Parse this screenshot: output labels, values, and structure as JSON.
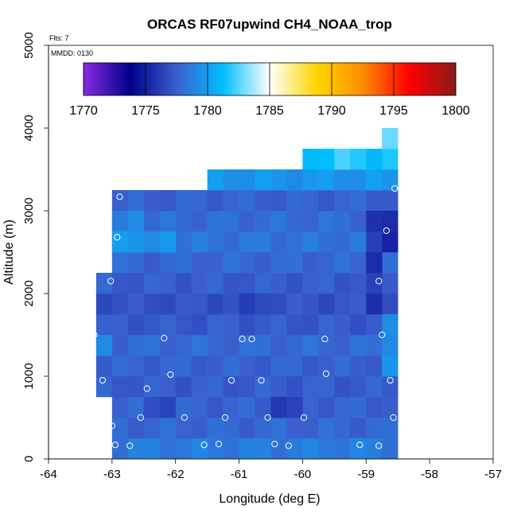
{
  "chart_data": {
    "type": "heatmap",
    "title": "ORCAS RF07upwind CH4_NOAA_trop",
    "xlabel": "Longitude (deg E)",
    "ylabel": "Altitude (m)",
    "xlim": [
      -64,
      -57
    ],
    "ylim": [
      0,
      5000
    ],
    "xticks": [
      -64,
      -63,
      -62,
      -61,
      -60,
      -59,
      -58,
      -57
    ],
    "yticks": [
      0,
      1000,
      2000,
      3000,
      4000,
      5000
    ],
    "annotations": {
      "flights": "Flts: 7",
      "date": "MMDD: 0130"
    },
    "colorbar": {
      "min": 1770,
      "max": 1800,
      "ticks": [
        1770,
        1775,
        1780,
        1785,
        1790,
        1795,
        1800
      ],
      "stops": [
        "#8a2be2",
        "#00008b",
        "#3a5fcd",
        "#00bfff",
        "#ffffff",
        "#ffd700",
        "#ff8c00",
        "#ff0000",
        "#8b1a1a"
      ]
    },
    "cell_size": {
      "dlon": 0.25,
      "dalt": 250
    },
    "cells": [
      {
        "lon0": -63.0,
        "lon1": -58.5,
        "alt0": 0,
        "alt1": 250,
        "v": 1778.6
      },
      {
        "lon0": -63.0,
        "lon1": -58.5,
        "alt0": 250,
        "alt1": 500,
        "v": 1777.8
      },
      {
        "lon0": -63.0,
        "lon1": -58.5,
        "alt0": 500,
        "alt1": 750,
        "v": 1777.6
      },
      {
        "lon0": -63.25,
        "lon1": -58.5,
        "alt0": 750,
        "alt1": 1000,
        "v": 1777.4
      },
      {
        "lon0": -63.25,
        "lon1": -58.5,
        "alt0": 1000,
        "alt1": 1250,
        "v": 1777.6
      },
      {
        "lon0": -63.25,
        "lon1": -58.5,
        "alt0": 1250,
        "alt1": 1500,
        "v": 1777.9
      },
      {
        "lon0": -63.25,
        "lon1": -58.5,
        "alt0": 1500,
        "alt1": 1750,
        "v": 1777.3
      },
      {
        "lon0": -63.25,
        "lon1": -58.5,
        "alt0": 1750,
        "alt1": 2000,
        "v": 1777.0
      },
      {
        "lon0": -63.25,
        "lon1": -58.5,
        "alt0": 2000,
        "alt1": 2250,
        "v": 1777.4
      },
      {
        "lon0": -63.0,
        "lon1": -58.5,
        "alt0": 2250,
        "alt1": 2500,
        "v": 1777.8
      },
      {
        "lon0": -63.0,
        "lon1": -58.5,
        "alt0": 2500,
        "alt1": 2750,
        "v": 1778.3
      },
      {
        "lon0": -63.0,
        "lon1": -58.5,
        "alt0": 2750,
        "alt1": 3000,
        "v": 1778.0
      },
      {
        "lon0": -63.0,
        "lon1": -58.5,
        "alt0": 3000,
        "alt1": 3250,
        "v": 1777.6
      },
      {
        "lon0": -61.5,
        "lon1": -58.5,
        "alt0": 3250,
        "alt1": 3500,
        "v": 1779.6
      },
      {
        "lon0": -60.0,
        "lon1": -58.5,
        "alt0": 3500,
        "alt1": 3750,
        "v": 1781.4
      },
      {
        "lon0": -58.75,
        "lon1": -58.5,
        "alt0": 3750,
        "alt1": 4000,
        "v": 1783.2
      }
    ],
    "patches": [
      {
        "lon0": -63.0,
        "lon1": -62.0,
        "alt0": 2500,
        "alt1": 2750,
        "v": 1779.6
      },
      {
        "lon0": -63.0,
        "lon1": -62.5,
        "alt0": 2750,
        "alt1": 3000,
        "v": 1779.0
      },
      {
        "lon0": -59.0,
        "lon1": -58.75,
        "alt0": 1750,
        "alt1": 3000,
        "v": 1775.9
      },
      {
        "lon0": -58.75,
        "lon1": -58.5,
        "alt0": 2500,
        "alt1": 3000,
        "v": 1775.4
      },
      {
        "lon0": -58.75,
        "lon1": -58.5,
        "alt0": 1000,
        "alt1": 1750,
        "v": 1779.3
      },
      {
        "lon0": -61.0,
        "lon1": -60.5,
        "alt0": 1750,
        "alt1": 2000,
        "v": 1776.2
      },
      {
        "lon0": -62.5,
        "lon1": -62.0,
        "alt0": 500,
        "alt1": 750,
        "v": 1776.4
      },
      {
        "lon0": -60.5,
        "lon1": -60.0,
        "alt0": 500,
        "alt1": 750,
        "v": 1776.4
      },
      {
        "lon0": -63.25,
        "lon1": -63.0,
        "alt0": 1250,
        "alt1": 1500,
        "v": 1779.3
      },
      {
        "lon0": -59.5,
        "lon1": -59.0,
        "alt0": 3500,
        "alt1": 3750,
        "v": 1782.2
      },
      {
        "lon0": -59.25,
        "lon1": -59.0,
        "alt0": 0,
        "alt1": 250,
        "v": 1779.5
      }
    ],
    "points": [
      {
        "lon": -63.28,
        "alt": 1500
      },
      {
        "lon": -63.15,
        "alt": 950
      },
      {
        "lon": -63.02,
        "alt": 2150
      },
      {
        "lon": -63.0,
        "alt": 400
      },
      {
        "lon": -62.95,
        "alt": 170
      },
      {
        "lon": -62.92,
        "alt": 2680
      },
      {
        "lon": -62.88,
        "alt": 3170
      },
      {
        "lon": -62.72,
        "alt": 160
      },
      {
        "lon": -62.55,
        "alt": 500
      },
      {
        "lon": -62.45,
        "alt": 850
      },
      {
        "lon": -62.18,
        "alt": 1460
      },
      {
        "lon": -62.08,
        "alt": 1020
      },
      {
        "lon": -61.86,
        "alt": 500
      },
      {
        "lon": -61.55,
        "alt": 170
      },
      {
        "lon": -61.32,
        "alt": 180
      },
      {
        "lon": -61.22,
        "alt": 500
      },
      {
        "lon": -61.12,
        "alt": 950
      },
      {
        "lon": -60.95,
        "alt": 1450
      },
      {
        "lon": -60.8,
        "alt": 1450
      },
      {
        "lon": -60.65,
        "alt": 950
      },
      {
        "lon": -60.55,
        "alt": 500
      },
      {
        "lon": -60.44,
        "alt": 180
      },
      {
        "lon": -60.22,
        "alt": 160
      },
      {
        "lon": -59.98,
        "alt": 500
      },
      {
        "lon": -59.65,
        "alt": 1450
      },
      {
        "lon": -59.63,
        "alt": 1030
      },
      {
        "lon": -59.1,
        "alt": 170
      },
      {
        "lon": -58.8,
        "alt": 160
      },
      {
        "lon": -58.8,
        "alt": 2150
      },
      {
        "lon": -58.75,
        "alt": 1500
      },
      {
        "lon": -58.68,
        "alt": 2760
      },
      {
        "lon": -58.62,
        "alt": 950
      },
      {
        "lon": -58.57,
        "alt": 500
      },
      {
        "lon": -58.55,
        "alt": 3270
      }
    ]
  }
}
